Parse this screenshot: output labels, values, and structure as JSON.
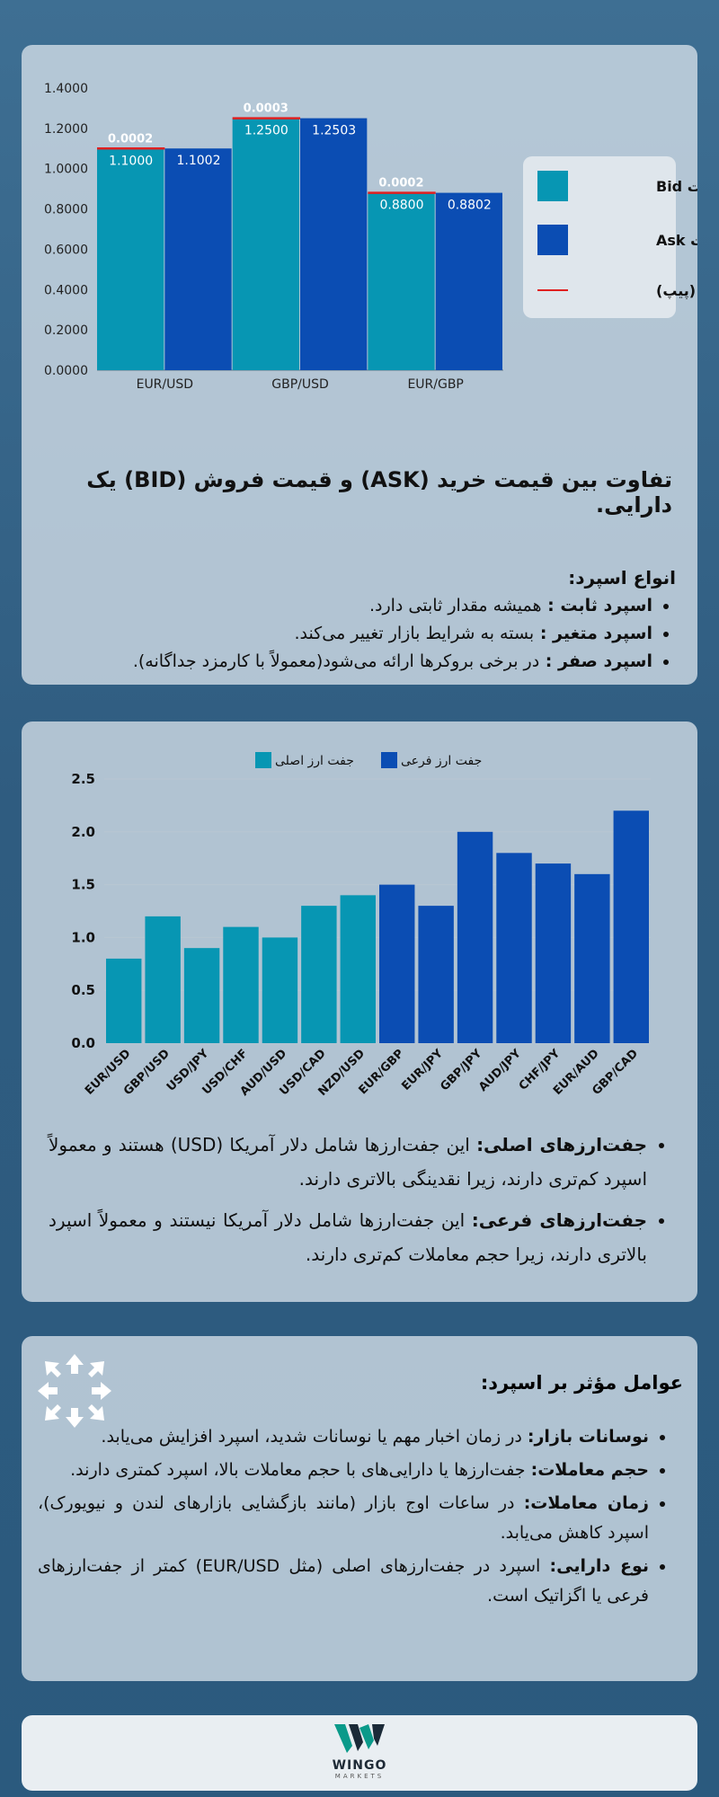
{
  "chart_data": [
    {
      "type": "bar",
      "categories": [
        "EUR/USD",
        "GBP/USD",
        "EUR/GBP"
      ],
      "series": [
        {
          "name": "قیمت Bid",
          "values": [
            1.1,
            1.25,
            0.88
          ],
          "labels": [
            "1.1000",
            "1.2500",
            "0.8800"
          ],
          "color": "#0796b3"
        },
        {
          "name": "قیمت Ask",
          "values": [
            1.1002,
            1.2503,
            0.8802
          ],
          "labels": [
            "1.1002",
            "1.2503",
            "0.8802"
          ],
          "color": "#0b4db3"
        }
      ],
      "spread": {
        "name": "اسپرد (پیپ)",
        "values": [
          0.0002,
          0.0003,
          0.0002
        ],
        "labels": [
          "0.0002",
          "0.0003",
          "0.0002"
        ],
        "color": "#e02020"
      },
      "yticks": [
        "0.0000",
        "0.2000",
        "0.4000",
        "0.6000",
        "0.8000",
        "1.0000",
        "1.2000",
        "1.4000"
      ],
      "ylim": [
        0,
        1.4
      ],
      "legend_position": "right"
    },
    {
      "type": "bar",
      "categories": [
        "EUR/USD",
        "GBP/USD",
        "USD/JPY",
        "USD/CHF",
        "AUD/USD",
        "USD/CAD",
        "NZD/USD",
        "EUR/GBP",
        "EUR/JPY",
        "GBP/JPY",
        "AUD/JPY",
        "CHF/JPY",
        "EUR/AUD",
        "GBP/CAD"
      ],
      "values": [
        0.8,
        1.2,
        0.9,
        1.1,
        1.0,
        1.3,
        1.4,
        1.5,
        1.3,
        2.0,
        1.8,
        1.7,
        1.6,
        2.2
      ],
      "groups": [
        "major",
        "major",
        "major",
        "major",
        "major",
        "major",
        "major",
        "minor",
        "minor",
        "minor",
        "minor",
        "minor",
        "minor",
        "minor"
      ],
      "series": [
        {
          "name": "جفت ارز اصلی",
          "color": "#0796b3"
        },
        {
          "name": "جفت ارز فرعی",
          "color": "#0b4db3"
        }
      ],
      "yticks": [
        "0.0",
        "0.5",
        "1.0",
        "1.5",
        "2.0",
        "2.5"
      ],
      "ylim": [
        0,
        2.5
      ],
      "legend_position": "top"
    }
  ],
  "card1": {
    "headline": "تفاوت بین قیمت خرید (ASK) و قیمت فروش (BID) یک دارایی.",
    "types_title": "انواع اسپرد:",
    "types": [
      {
        "term": "اسپرد ثابت",
        "desc": "همیشه مقدار ثابتی دارد."
      },
      {
        "term": "اسپرد متغیر",
        "desc": "بسته به شرایط بازار تغییر می‌کند."
      },
      {
        "term": "اسپرد صفر",
        "desc": "در برخی بروکرها ارائه می‌شود(معمولاً با کارمزد جداگانه)."
      }
    ]
  },
  "card2": {
    "items": [
      {
        "term": "جفت‌ارزهای اصلی:",
        "desc": "این جفت‌ارزها شامل دلار آمریکا (USD) هستند و معمولاً اسپرد کم‌تری دارند، زیرا نقدینگی بالاتری دارند."
      },
      {
        "term": "جفت‌ارزهای فرعی:",
        "desc": "این جفت‌ارزها شامل دلار آمریکا نیستند و معمولاً اسپرد بالاتری دارند، زیرا حجم معاملات کم‌تری دارند."
      }
    ]
  },
  "card3": {
    "title": "عوامل مؤثر بر اسپرد:",
    "icon": "expand-arrows-icon",
    "items": [
      {
        "term": "نوسانات بازار:",
        "desc": "در زمان اخبار مهم یا نوسانات شدید، اسپرد افزایش می‌یابد."
      },
      {
        "term": "حجم معاملات:",
        "desc": "جفت‌ارزها یا دارایی‌های با حجم معاملات بالا، اسپرد کمتری دارند."
      },
      {
        "term": "زمان معاملات:",
        "desc": "در ساعات اوج بازار (مانند بازگشایی بازارهای لندن و نیویورک)، اسپرد کاهش می‌یابد."
      },
      {
        "term": "نوع دارایی:",
        "desc": "اسپرد در جفت‌ارزهای اصلی (مثل EUR/USD) کمتر از جفت‌ارزهای فرعی یا اگزاتیک است."
      }
    ]
  },
  "footer": {
    "brand": "WINGO",
    "sub": "MARKETS",
    "logo_colors": [
      "#0a9a8a",
      "#1b2a38"
    ]
  }
}
